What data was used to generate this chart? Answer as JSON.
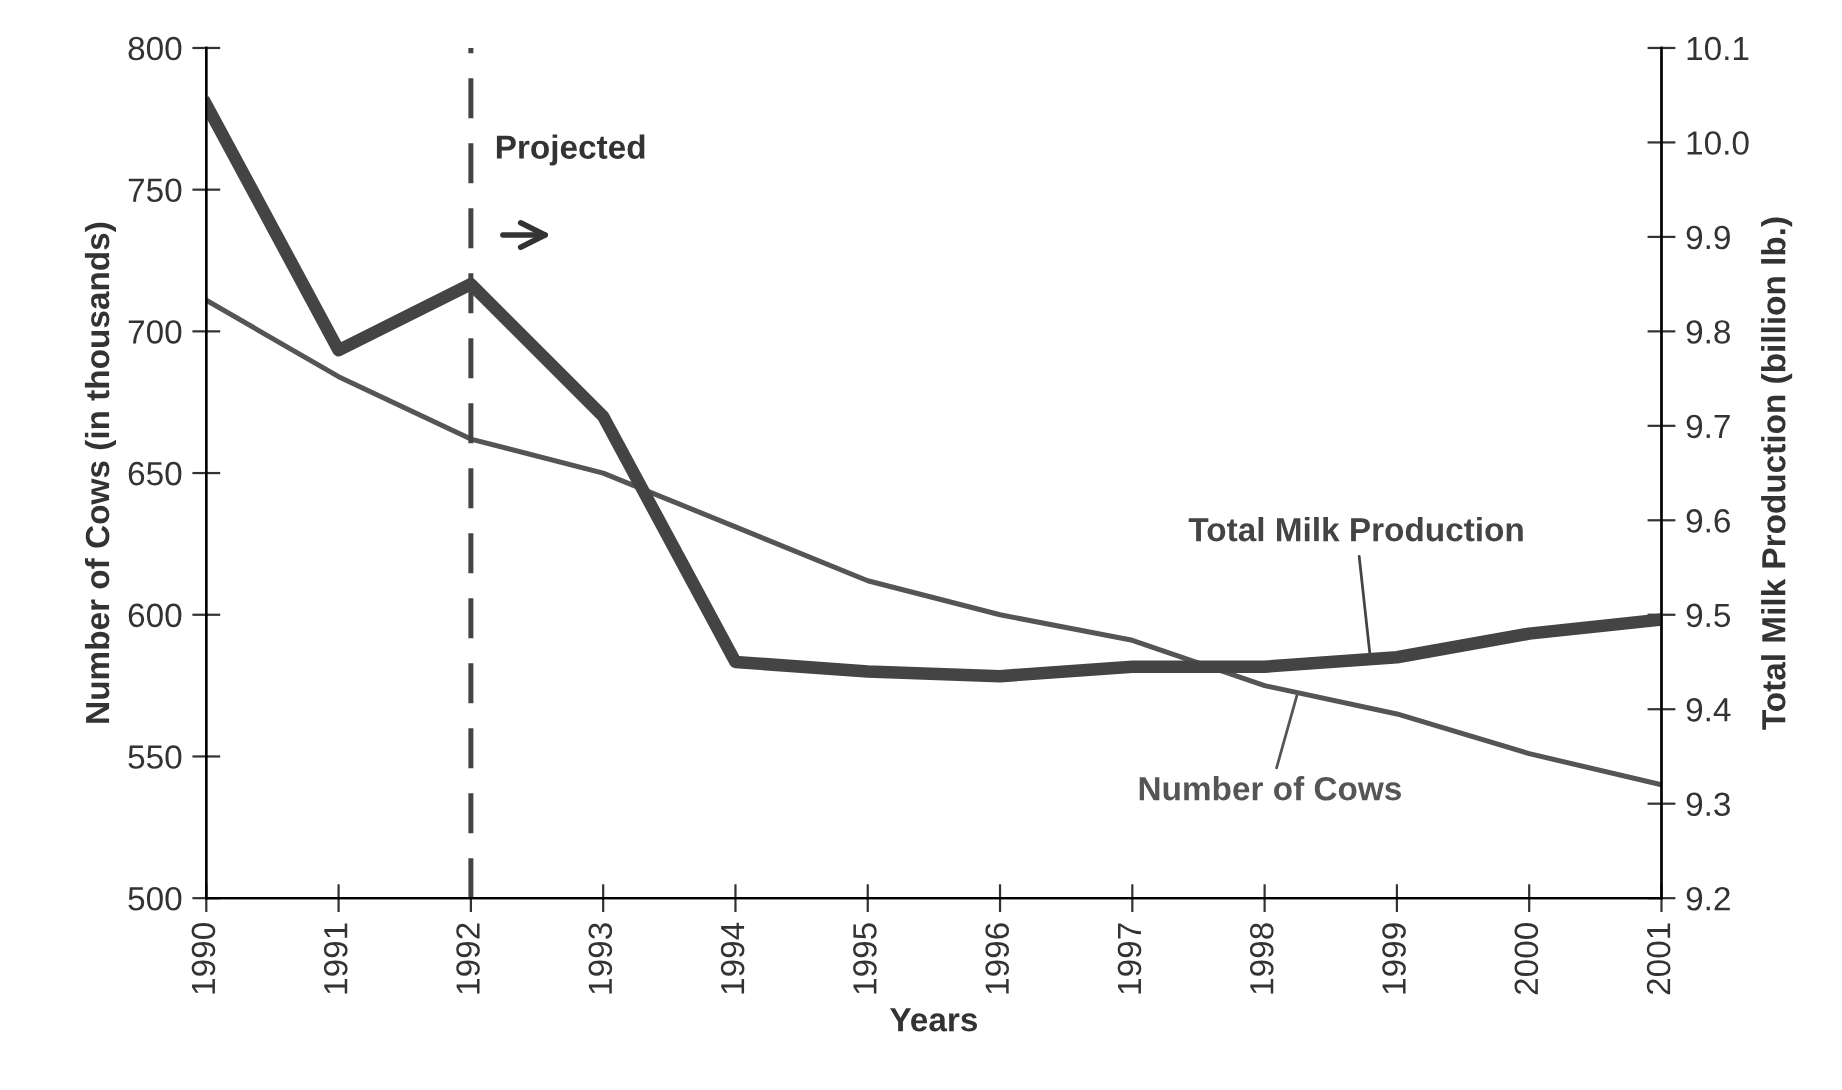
{
  "chart_data": {
    "type": "line",
    "xlabel": "Years",
    "ylabel": "Number of Cows (in thousands)",
    "y2label": "Total Milk Production (billion lb.)",
    "x": [
      1990,
      1991,
      1992,
      1993,
      1994,
      1995,
      1996,
      1997,
      1998,
      1999,
      2000,
      2001
    ],
    "series": [
      {
        "name": "Number of Cows",
        "color": "#555555",
        "values": [
          711,
          684,
          662,
          650,
          631,
          612,
          600,
          591,
          575,
          565,
          551,
          540
        ]
      },
      {
        "name": "Total Milk Production",
        "color": "#444444",
        "axis": "y2",
        "values": [
          10.04,
          9.78,
          9.85,
          9.71,
          9.45,
          9.44,
          9.435,
          9.445,
          9.445,
          9.455,
          9.48,
          9.495
        ]
      }
    ],
    "xlim": [
      1990,
      2001
    ],
    "xticks": [
      1990,
      1991,
      1992,
      1993,
      1994,
      1995,
      1996,
      1997,
      1998,
      1999,
      2000,
      2001
    ],
    "ylim": [
      500,
      800
    ],
    "yticks": [
      500,
      550,
      600,
      650,
      700,
      750,
      800
    ],
    "y2lim": [
      9.2,
      10.1
    ],
    "y2ticks": [
      {
        "value": 9.2,
        "label": "9.2"
      },
      {
        "value": 9.3,
        "label": "9.3"
      },
      {
        "value": 9.4,
        "label": "9.4"
      },
      {
        "value": 9.5,
        "label": "9.5"
      },
      {
        "value": 9.6,
        "label": "9.6"
      },
      {
        "value": 9.7,
        "label": "9.7"
      },
      {
        "value": 9.8,
        "label": "9.8"
      },
      {
        "value": 9.9,
        "label": "9.9"
      },
      {
        "value": 10.0,
        "label": "10.0"
      },
      {
        "value": 10.1,
        "label": "10.1"
      }
    ],
    "ref_lines": [
      {
        "axis": "x",
        "value": 1992,
        "label": "Projected",
        "color": "#444444",
        "line_style": "dashed"
      }
    ],
    "grid": false,
    "marker": "none",
    "line_style": "solid"
  }
}
